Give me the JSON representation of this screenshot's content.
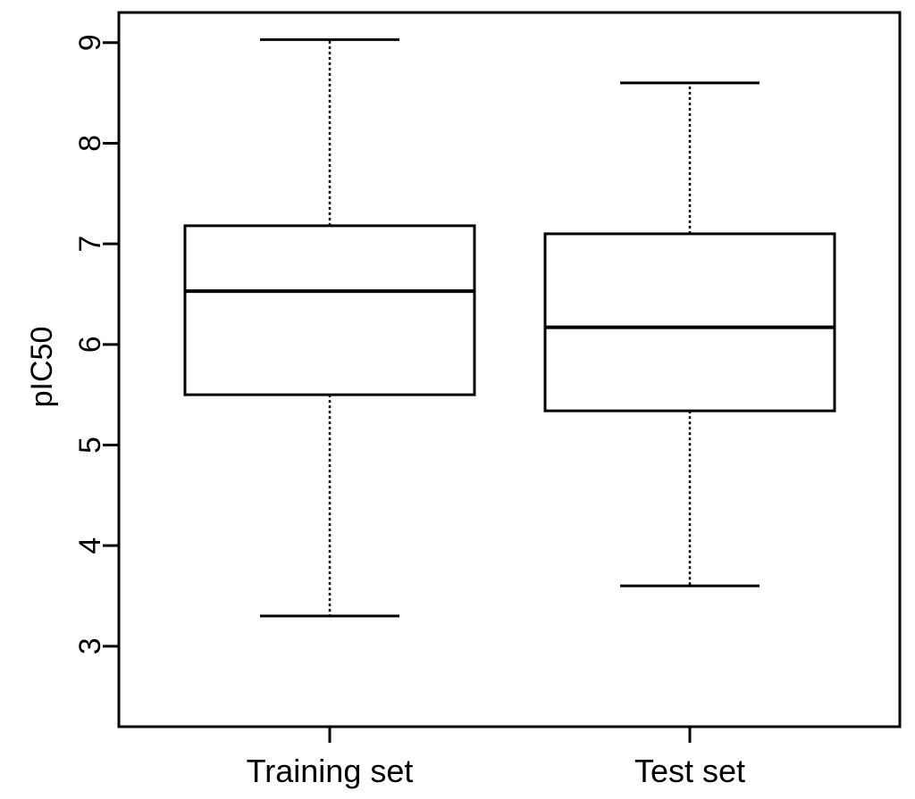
{
  "chart_data": {
    "type": "boxplot",
    "title": "",
    "xlabel": "",
    "ylabel": "pIC50",
    "ylim": [
      2.2,
      9.3
    ],
    "yticks": [
      3,
      4,
      5,
      6,
      7,
      8,
      9
    ],
    "grid": false,
    "legend": "none",
    "categories": [
      "Training set",
      "Test set"
    ],
    "boxes": [
      {
        "name": "Training set",
        "whisker_low": 3.3,
        "q1": 5.5,
        "median": 6.53,
        "q3": 7.18,
        "whisker_high": 9.03
      },
      {
        "name": "Test set",
        "whisker_low": 3.6,
        "q1": 5.34,
        "median": 6.17,
        "q3": 7.1,
        "whisker_high": 8.6
      }
    ]
  }
}
